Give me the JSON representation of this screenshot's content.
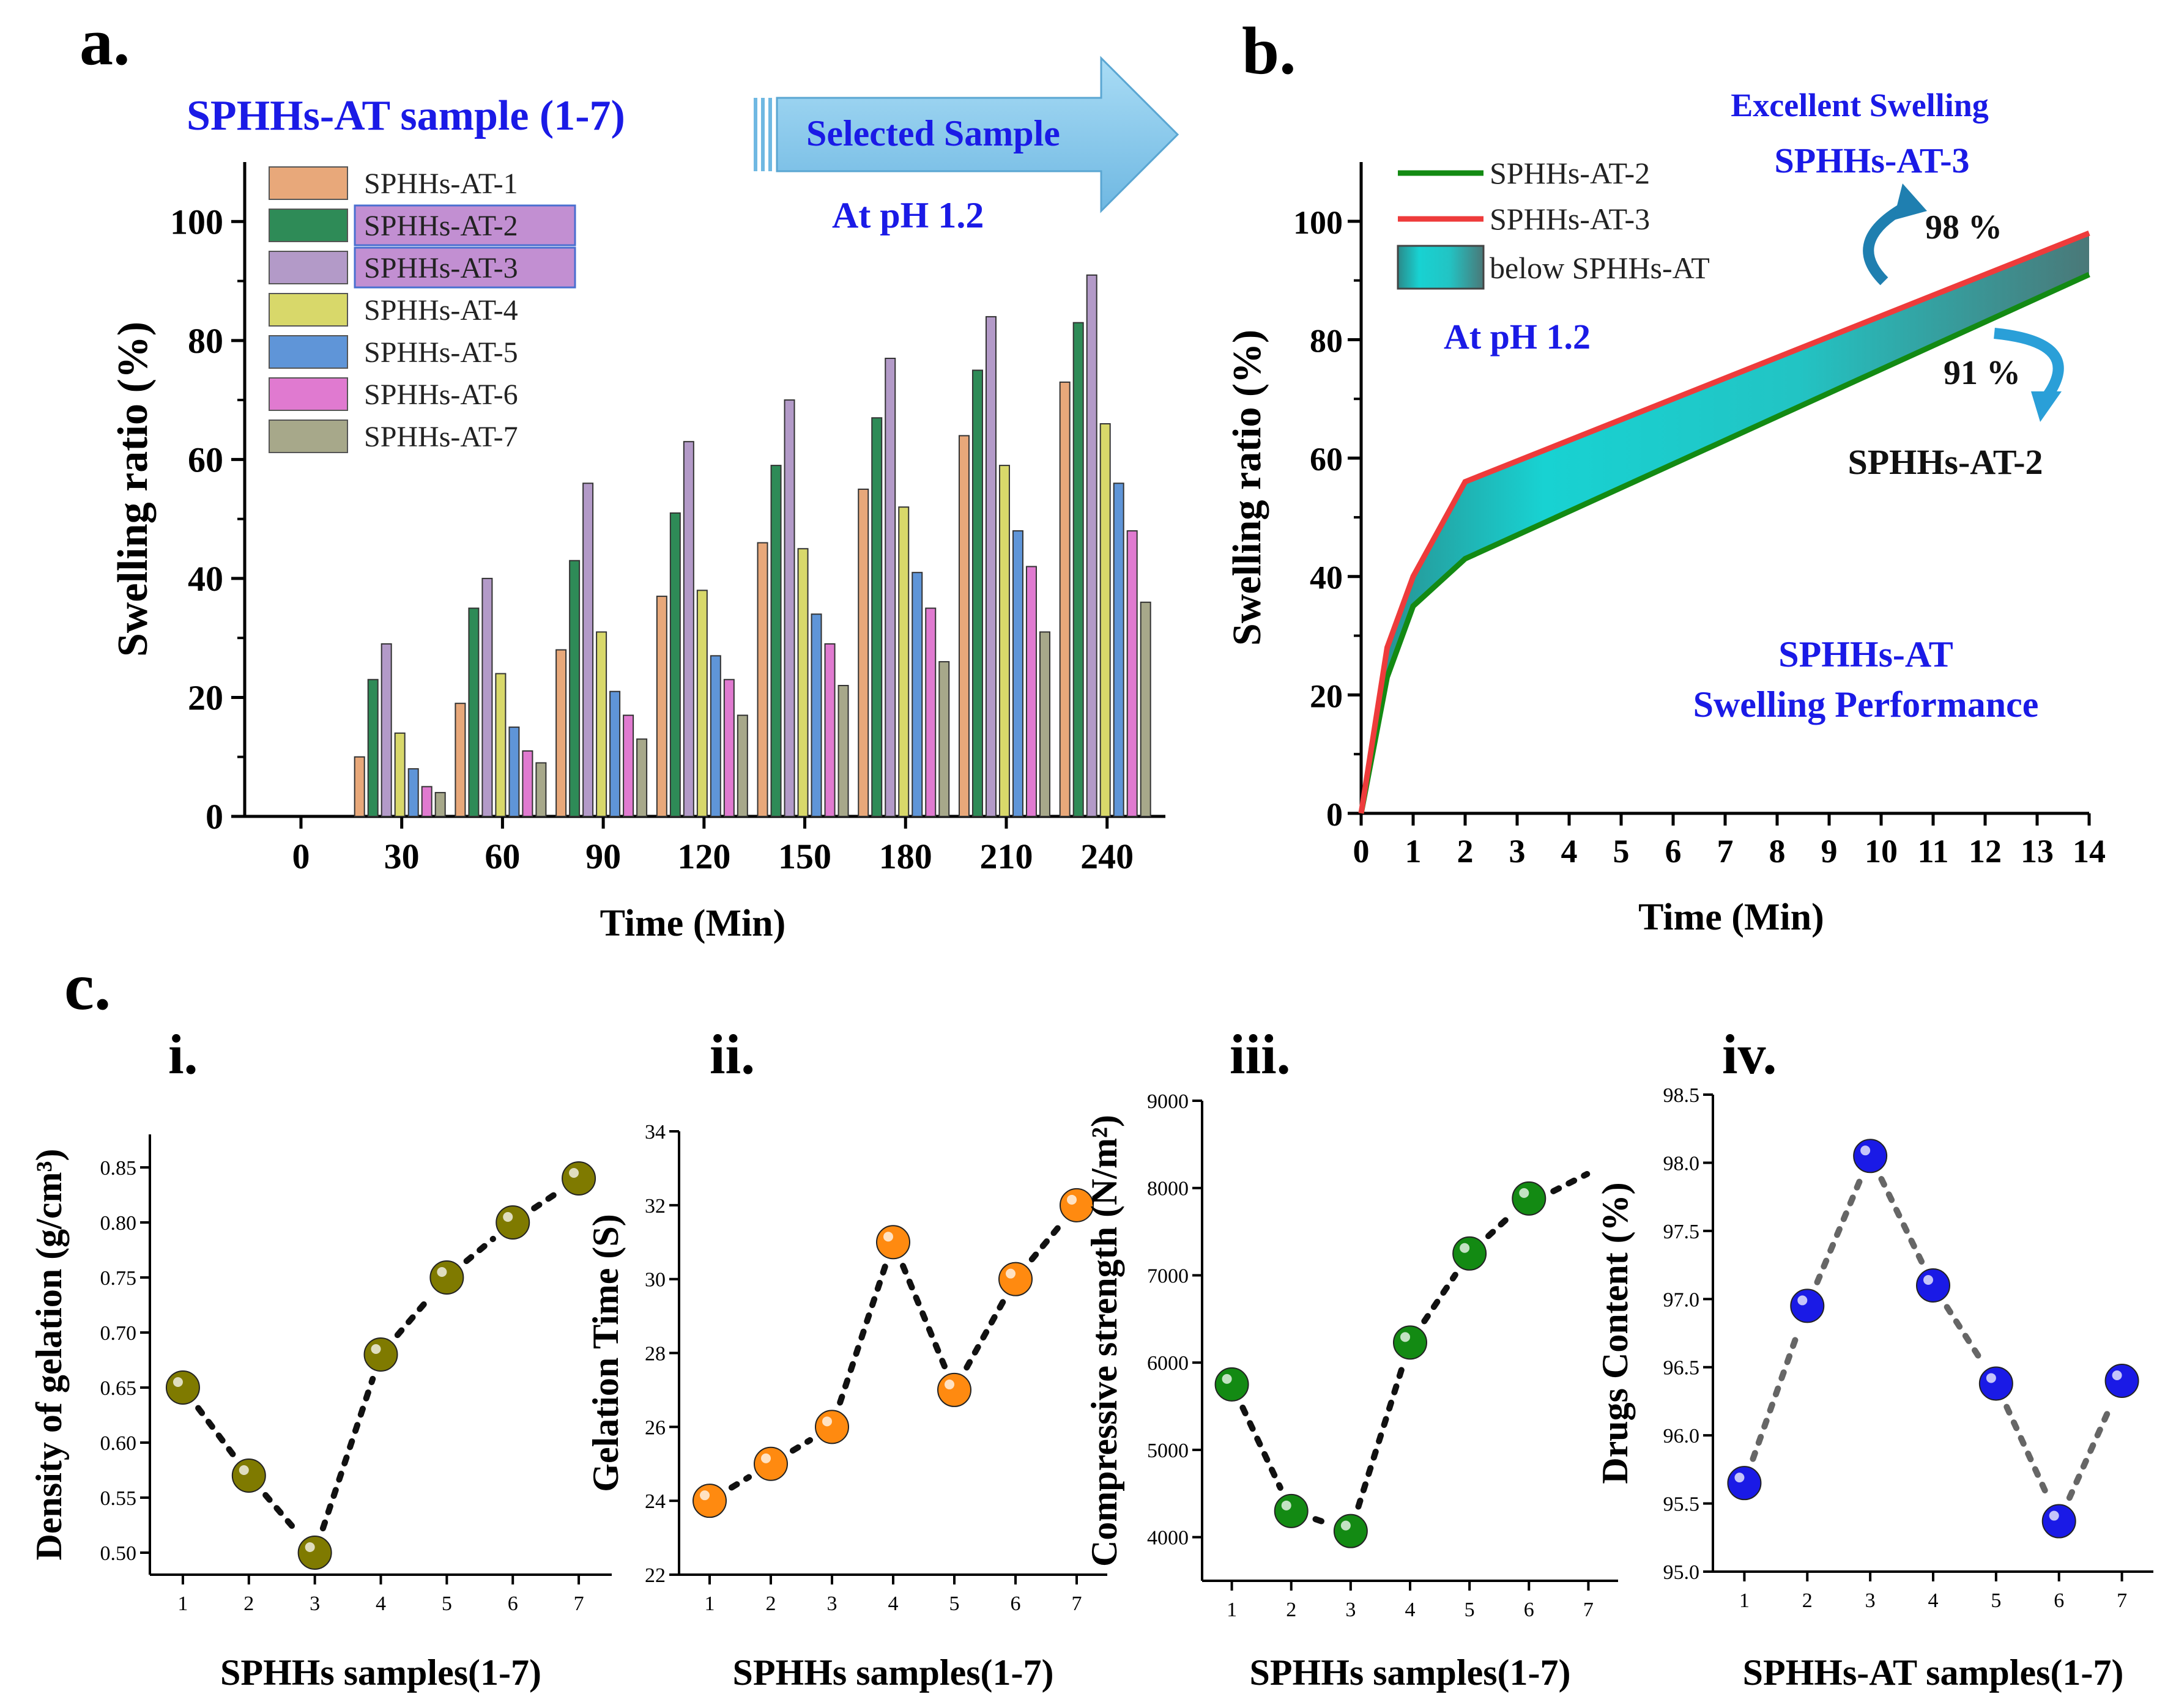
{
  "colors": {
    "at1": "#e8a87a",
    "at2": "#2e8b57",
    "at3": "#b39ac8",
    "at4": "#d8d86a",
    "at5": "#5f95d8",
    "at6": "#e07ad0",
    "at7": "#a7a88a",
    "green_line": "#138a13",
    "red_line": "#ee3b3b",
    "fill_band": "#22c4c4",
    "olive_dot": "#7f7a00",
    "orange_dot": "#ff8a10",
    "green_dot": "#138a13",
    "blue_dot": "#1a1ae6",
    "arrow_blue": "#7ec4e8",
    "highlight": "#c28fd2"
  },
  "panel_a": {
    "label": "a.",
    "header": "SPHHs-AT sample (1-7)",
    "arrow_text": "Selected Sample",
    "ph_text": "At pH 1.2"
  },
  "panel_b": {
    "label": "b.",
    "note_excellent": "Excellent Swelling",
    "note_at3": "SPHHs-AT-3",
    "pct_98": "98 %",
    "pct_91": "91 %",
    "note_at2": "SPHHs-AT-2",
    "ph_text": "At pH 1.2",
    "perf_line1": "SPHHs-AT",
    "perf_line2": "Swelling Performance"
  },
  "panel_c": {
    "label": "c.",
    "sub_labels": [
      "i.",
      "ii.",
      "iii.",
      "iv."
    ]
  },
  "chart_data": [
    {
      "id": "a",
      "type": "bar",
      "title": "",
      "xlabel": "Time (Min)",
      "ylabel": "Swelling ratio (%)",
      "ylim": [
        0,
        110
      ],
      "yticks": [
        0,
        20,
        40,
        60,
        80,
        100
      ],
      "categories": [
        "0",
        "30",
        "60",
        "90",
        "120",
        "150",
        "180",
        "210",
        "240"
      ],
      "series": [
        {
          "name": "SPHHs-AT-1",
          "values": [
            0,
            10,
            19,
            28,
            37,
            46,
            55,
            64,
            73
          ]
        },
        {
          "name": "SPHHs-AT-2",
          "values": [
            0,
            23,
            35,
            43,
            51,
            59,
            67,
            75,
            83
          ]
        },
        {
          "name": "SPHHs-AT-3",
          "values": [
            0,
            29,
            40,
            56,
            63,
            70,
            77,
            84,
            91
          ]
        },
        {
          "name": "SPHHs-AT-4",
          "values": [
            0,
            14,
            24,
            31,
            38,
            45,
            52,
            59,
            66
          ]
        },
        {
          "name": "SPHHs-AT-5",
          "values": [
            0,
            8,
            15,
            21,
            27,
            34,
            41,
            48,
            56
          ]
        },
        {
          "name": "SPHHs-AT-6",
          "values": [
            0,
            5,
            11,
            17,
            23,
            29,
            35,
            42,
            48
          ]
        },
        {
          "name": "SPHHs-AT-7",
          "values": [
            0,
            4,
            9,
            13,
            17,
            22,
            26,
            31,
            36
          ]
        }
      ],
      "legend_highlighted": [
        "SPHHs-AT-2",
        "SPHHs-AT-3"
      ],
      "legend_position": "top-left"
    },
    {
      "id": "b",
      "type": "area",
      "xlabel": "Time (Min)",
      "ylabel": "Swelling ratio (%)",
      "xlim": [
        0,
        14
      ],
      "ylim": [
        0,
        110
      ],
      "xticks": [
        0,
        1,
        2,
        3,
        4,
        5,
        6,
        7,
        8,
        9,
        10,
        11,
        12,
        13,
        14
      ],
      "yticks": [
        0,
        20,
        40,
        60,
        80,
        100
      ],
      "series": [
        {
          "name": "SPHHs-AT-2",
          "x": [
            0,
            0.5,
            1,
            2,
            14
          ],
          "y": [
            0,
            23,
            35,
            43,
            91
          ]
        },
        {
          "name": "SPHHs-AT-3",
          "x": [
            0,
            0.5,
            1,
            2,
            14
          ],
          "y": [
            0,
            28,
            40,
            56,
            98
          ]
        }
      ],
      "fill_label": "below SPHHs-AT",
      "legend_position": "top-left"
    },
    {
      "id": "c-i",
      "type": "scatter",
      "xlabel": "SPHHs samples(1-7)",
      "ylabel": "Density of gelation (g/cm³)",
      "xlim": [
        0.5,
        7.5
      ],
      "ylim": [
        0.48,
        0.88
      ],
      "xticks": [
        1,
        2,
        3,
        4,
        5,
        6,
        7
      ],
      "yticks": [
        0.5,
        0.55,
        0.6,
        0.65,
        0.7,
        0.75,
        0.8,
        0.85
      ],
      "ytick_labels": [
        "0.50",
        "0.55",
        "0.60",
        "0.65",
        "0.70",
        "0.75",
        "0.80",
        "0.85"
      ],
      "x": [
        1,
        2,
        3,
        4,
        5,
        6,
        7
      ],
      "y": [
        0.65,
        0.57,
        0.5,
        0.68,
        0.75,
        0.8,
        0.84
      ]
    },
    {
      "id": "c-ii",
      "type": "scatter",
      "xlabel": "SPHHs samples(1-7)",
      "ylabel": "Gelation Time (S)",
      "xlim": [
        0.5,
        7.5
      ],
      "ylim": [
        22,
        34
      ],
      "xticks": [
        1,
        2,
        3,
        4,
        5,
        6,
        7
      ],
      "yticks": [
        22,
        24,
        26,
        28,
        30,
        32,
        34
      ],
      "ytick_labels": [
        "22",
        "24",
        "26",
        "28",
        "30",
        "32",
        "34"
      ],
      "x": [
        1,
        2,
        3,
        4,
        5,
        6,
        7
      ],
      "y": [
        24,
        25,
        26,
        31,
        27,
        30,
        32
      ]
    },
    {
      "id": "c-iii",
      "type": "scatter",
      "xlabel": "SPHHs samples(1-7)",
      "ylabel": "Compressive strength (N/m²)",
      "xlim": [
        0.5,
        7.5
      ],
      "ylim": [
        3500,
        9000
      ],
      "xticks": [
        1,
        2,
        3,
        4,
        5,
        6,
        7
      ],
      "yticks": [
        4000,
        5000,
        6000,
        7000,
        8000,
        9000
      ],
      "ytick_labels": [
        "4000",
        "5000",
        "6000",
        "7000",
        "8000",
        "9000"
      ],
      "x": [
        1,
        2,
        3,
        4,
        5,
        6
      ],
      "y": [
        5750,
        4300,
        4070,
        6230,
        7250,
        7880
      ]
    },
    {
      "id": "c-iv",
      "type": "scatter",
      "xlabel": "SPHHs-AT samples(1-7)",
      "ylabel": "Drugs Content (%)",
      "xlim": [
        0.5,
        7.5
      ],
      "ylim": [
        95.0,
        98.5
      ],
      "xticks": [
        1,
        2,
        3,
        4,
        5,
        6,
        7
      ],
      "yticks": [
        95.0,
        95.5,
        96.0,
        96.5,
        97.0,
        97.5,
        98.0,
        98.5
      ],
      "ytick_labels": [
        "95.0",
        "95.5",
        "96.0",
        "96.5",
        "97.0",
        "97.5",
        "98.0",
        "98.5"
      ],
      "x": [
        1,
        2,
        3,
        4,
        5,
        6,
        7
      ],
      "y": [
        95.65,
        96.95,
        98.05,
        97.1,
        96.38,
        95.37,
        96.4
      ]
    }
  ]
}
